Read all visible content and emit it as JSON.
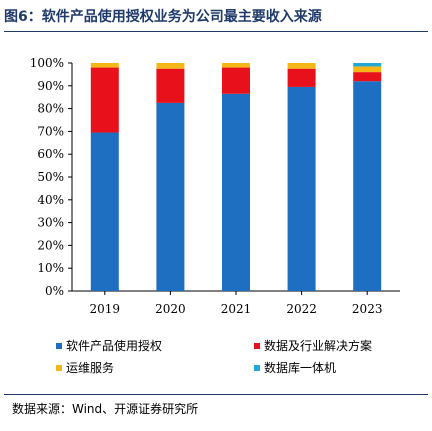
{
  "header": {
    "title": "图6：软件产品使用授权业务为公司最主要收入来源"
  },
  "footer": {
    "source": "数据来源：Wind、开源证券研究所"
  },
  "chart_data": {
    "type": "bar",
    "stacked": true,
    "categories": [
      "2019",
      "2020",
      "2021",
      "2022",
      "2023"
    ],
    "series": [
      {
        "name": "软件产品使用授权",
        "color": "#1e6fc2",
        "values": [
          69.5,
          82.5,
          86.5,
          89.5,
          92.0
        ]
      },
      {
        "name": "数据及行业解决方案",
        "color": "#e8101a",
        "values": [
          28.5,
          15.0,
          11.5,
          8.0,
          4.0
        ]
      },
      {
        "name": "运维服务",
        "color": "#f5b617",
        "values": [
          2.0,
          2.5,
          2.0,
          2.5,
          2.5
        ]
      },
      {
        "name": "数据库一体机",
        "color": "#21a8d8",
        "values": [
          0,
          0,
          0,
          0,
          1.5
        ]
      }
    ],
    "yticks": [
      "0%",
      "10%",
      "20%",
      "30%",
      "40%",
      "50%",
      "60%",
      "70%",
      "80%",
      "90%",
      "100%"
    ],
    "ylim": [
      0,
      100
    ],
    "grid": false,
    "legend_position": "bottom"
  }
}
